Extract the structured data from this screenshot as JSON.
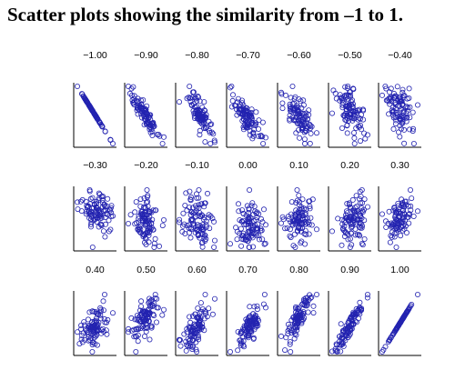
{
  "title": "Scatter plots showing the similarity from –1 to 1.",
  "colors": {
    "points": "#2323b0",
    "axes": "#000000",
    "background": "#ffffff"
  },
  "chart_data": {
    "type": "scatter",
    "title": "Scatter plots showing the similarity from –1 to 1.",
    "xlabel": "",
    "ylabel": "",
    "grid": false,
    "points_per_panel": 100,
    "panels": [
      {
        "label": "−1.00",
        "r": -1.0
      },
      {
        "label": "−0.90",
        "r": -0.9
      },
      {
        "label": "−0.80",
        "r": -0.8
      },
      {
        "label": "−0.70",
        "r": -0.7
      },
      {
        "label": "−0.60",
        "r": -0.6
      },
      {
        "label": "−0.50",
        "r": -0.5
      },
      {
        "label": "−0.40",
        "r": -0.4
      },
      {
        "label": "−0.30",
        "r": -0.3
      },
      {
        "label": "−0.20",
        "r": -0.2
      },
      {
        "label": "−0.10",
        "r": -0.1
      },
      {
        "label": "0.00",
        "r": 0.0
      },
      {
        "label": "0.10",
        "r": 0.1
      },
      {
        "label": "0.20",
        "r": 0.2
      },
      {
        "label": "0.30",
        "r": 0.3
      },
      {
        "label": "0.40",
        "r": 0.4
      },
      {
        "label": "0.50",
        "r": 0.5
      },
      {
        "label": "0.60",
        "r": 0.6
      },
      {
        "label": "0.70",
        "r": 0.7
      },
      {
        "label": "0.80",
        "r": 0.8
      },
      {
        "label": "0.90",
        "r": 0.9
      },
      {
        "label": "1.00",
        "r": 1.0
      }
    ]
  }
}
